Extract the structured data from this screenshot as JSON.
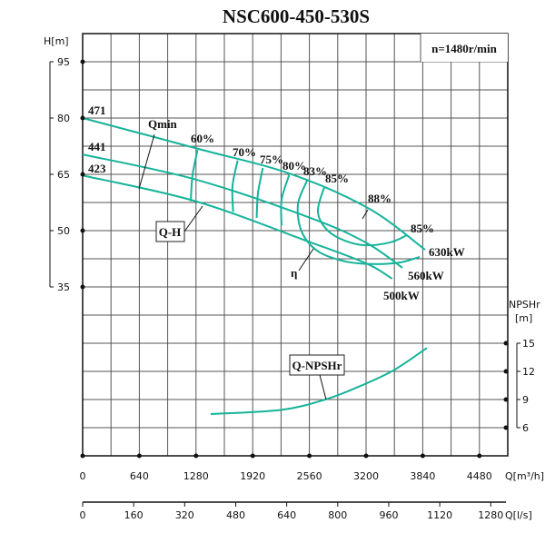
{
  "chart_data": {
    "type": "line",
    "title": "NSC600-450-530S",
    "speed_label": "n=1480r/min",
    "x_axis": {
      "label": "Q[m³/h]",
      "ticks": [
        "0",
        "640",
        "1280",
        "1920",
        "2560",
        "3200",
        "3840",
        "4480"
      ],
      "range": [
        0,
        4800
      ]
    },
    "x2_axis": {
      "label": "Q[l/s]",
      "ticks": [
        "0",
        "160",
        "320",
        "480",
        "640",
        "800",
        "960",
        "1120",
        "1280"
      ]
    },
    "y_axis": {
      "label": "H[m]",
      "ticks": [
        "95",
        "80",
        "65",
        "50",
        "35"
      ]
    },
    "y2_axis": {
      "label_line1": "NPSHr",
      "label_line2": "[m]",
      "ticks": [
        "15",
        "12",
        "9",
        "6"
      ]
    },
    "grid": true,
    "curve_color": "#16b39a",
    "qh_series": [
      {
        "name": "471",
        "points": [
          [
            0,
            80
          ],
          [
            1289,
            71.9
          ],
          [
            2349,
            65.1
          ],
          [
            3238,
            55.8
          ],
          [
            3867,
            44.9
          ]
        ]
      },
      {
        "name": "441",
        "points": [
          [
            0,
            70.3
          ],
          [
            1280,
            63.6
          ],
          [
            2560,
            53.5
          ],
          [
            3200,
            46.8
          ],
          [
            3610,
            40.1
          ]
        ]
      },
      {
        "name": "423",
        "points": [
          [
            0,
            64.7
          ],
          [
            1280,
            57.8
          ],
          [
            2560,
            47.0
          ],
          [
            3200,
            41.3
          ],
          [
            3494,
            37.2
          ]
        ]
      }
    ],
    "efficiency_contours": [
      {
        "name": "60%",
        "points": [
          [
            1297,
            71.5
          ],
          [
            1241,
            64.8
          ],
          [
            1220,
            57.8
          ]
        ]
      },
      {
        "name": "70%",
        "points": [
          [
            1750,
            68.7
          ],
          [
            1692,
            61.9
          ],
          [
            1699,
            55.0
          ]
        ]
      },
      {
        "name": "75%",
        "points": [
          [
            2034,
            66.7
          ],
          [
            1979,
            59.9
          ],
          [
            1965,
            53.4
          ]
        ]
      },
      {
        "name": "80%",
        "points": [
          [
            2331,
            64.8
          ],
          [
            2246,
            58.2
          ],
          [
            2246,
            51.4
          ]
        ]
      },
      {
        "name": "83%",
        "points": [
          [
            2533,
            63.3
          ],
          [
            2431,
            57.0
          ],
          [
            2472,
            49.8
          ],
          [
            2656,
            44.5
          ],
          [
            2964,
            41.8
          ],
          [
            3272,
            41.1
          ],
          [
            3579,
            41.5
          ],
          [
            3805,
            43.0
          ]
        ]
      },
      {
        "name": "85%",
        "points": [
          [
            2725,
            61.4
          ],
          [
            2656,
            55.1
          ],
          [
            2759,
            50.2
          ],
          [
            2964,
            47.3
          ],
          [
            3200,
            46.1
          ],
          [
            3477,
            46.9
          ],
          [
            3661,
            48.8
          ]
        ]
      }
    ],
    "npsh_series": {
      "name": "Q-NPSHr",
      "points": [
        [
          1446,
          7.45
        ],
        [
          2246,
          7.9
        ],
        [
          2738,
          9.0
        ],
        [
          3100,
          10.3
        ],
        [
          3508,
          12.1
        ],
        [
          3887,
          14.5
        ]
      ]
    },
    "annotations": {
      "qmin": "Qmin",
      "qh": "Q-H",
      "eta": "η",
      "npsh": "Q-NPSHr",
      "eff": [
        "60%",
        "70%",
        "75%",
        "80%",
        "83%",
        "85%",
        "88%",
        "85%"
      ],
      "power": [
        "630kW",
        "560kW",
        "500kW"
      ],
      "diam": [
        "471",
        "441",
        "423"
      ]
    }
  }
}
